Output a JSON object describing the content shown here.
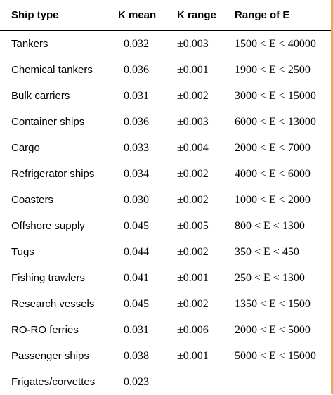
{
  "table": {
    "headers": {
      "ship_type": "Ship type",
      "k_mean": "K mean",
      "k_range": "K range",
      "range_e": "Range of E"
    },
    "rows": [
      {
        "ship_type": "Tankers",
        "k_mean": "0.032",
        "k_range": "±0.003",
        "range_e": "1500 < E < 40000"
      },
      {
        "ship_type": "Chemical tankers",
        "k_mean": "0.036",
        "k_range": "±0.001",
        "range_e": "1900 < E < 2500"
      },
      {
        "ship_type": "Bulk carriers",
        "k_mean": "0.031",
        "k_range": "±0.002",
        "range_e": "3000 < E < 15000"
      },
      {
        "ship_type": "Container ships",
        "k_mean": "0.036",
        "k_range": "±0.003",
        "range_e": "6000 < E < 13000"
      },
      {
        "ship_type": "Cargo",
        "k_mean": "0.033",
        "k_range": "±0.004",
        "range_e": "2000 < E < 7000"
      },
      {
        "ship_type": "Refrigerator ships",
        "k_mean": "0.034",
        "k_range": "±0.002",
        "range_e": "4000 < E < 6000"
      },
      {
        "ship_type": "Coasters",
        "k_mean": "0.030",
        "k_range": "±0.002",
        "range_e": "1000 < E < 2000"
      },
      {
        "ship_type": "Offshore supply",
        "k_mean": "0.045",
        "k_range": "±0.005",
        "range_e": "800 < E < 1300"
      },
      {
        "ship_type": "Tugs",
        "k_mean": "0.044",
        "k_range": "±0.002",
        "range_e": "350 < E < 450"
      },
      {
        "ship_type": "Fishing trawlers",
        "k_mean": "0.041",
        "k_range": "±0.001",
        "range_e": "250 < E < 1300"
      },
      {
        "ship_type": "Research vessels",
        "k_mean": "0.045",
        "k_range": "±0.002",
        "range_e": "1350 < E < 1500"
      },
      {
        "ship_type": "RO-RO ferries",
        "k_mean": "0.031",
        "k_range": "±0.006",
        "range_e": "2000 < E < 5000"
      },
      {
        "ship_type": "Passenger ships",
        "k_mean": "0.038",
        "k_range": "±0.001",
        "range_e": "5000 < E < 15000"
      },
      {
        "ship_type": "Frigates/corvettes",
        "k_mean": "0.023",
        "k_range": "",
        "range_e": ""
      }
    ]
  }
}
